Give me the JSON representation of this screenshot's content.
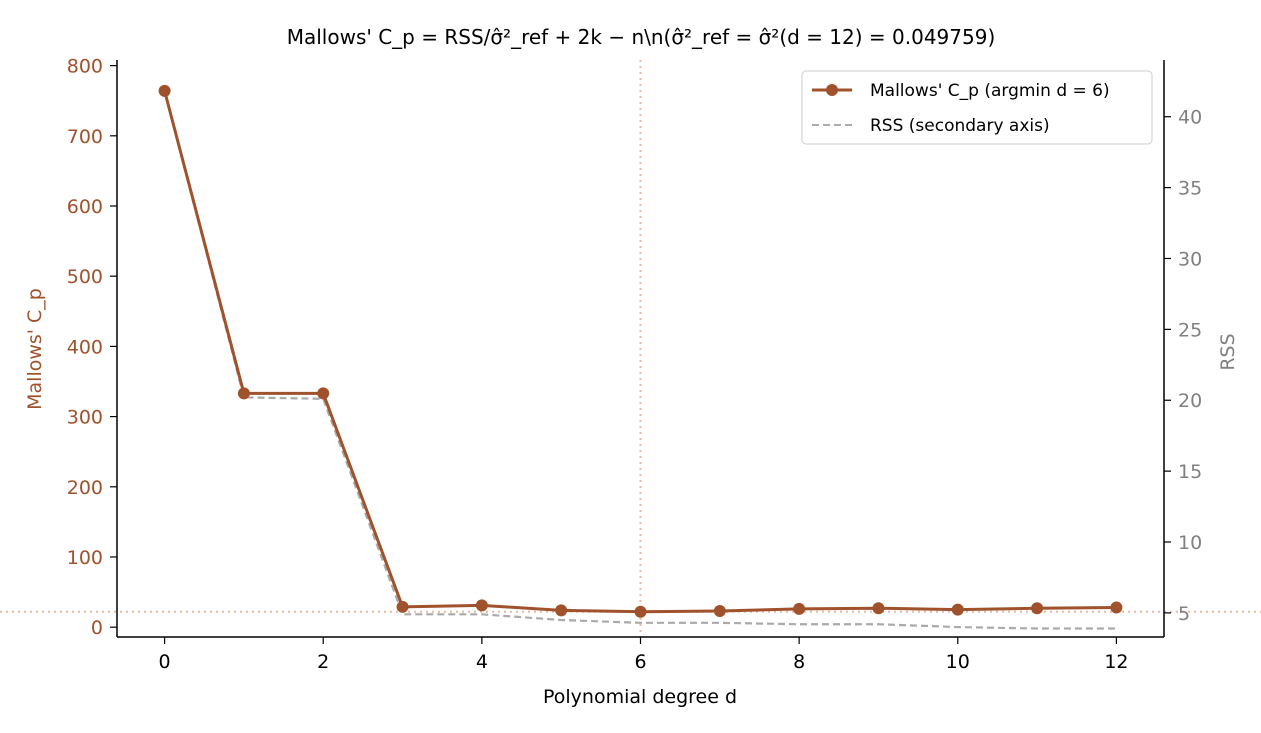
{
  "chart_data": {
    "type": "line",
    "title": "Mallows' C_p = RSS/σ̂²_ref + 2k − n\\n(σ̂²_ref = σ̂²(d = 12) = 0.049759)",
    "xlabel": "Polynomial degree d",
    "ylabel": "Mallows' C_p",
    "y2label": "RSS",
    "x": [
      0,
      1,
      2,
      3,
      4,
      5,
      6,
      7,
      8,
      9,
      10,
      11,
      12
    ],
    "xlim": [
      -0.6,
      12.6
    ],
    "ylim": [
      -14,
      808
    ],
    "y2lim": [
      3.3,
      44.0
    ],
    "xticks": [
      0,
      2,
      4,
      6,
      8,
      10,
      12
    ],
    "xtick_labels": [
      "0",
      "2",
      "4",
      "6",
      "8",
      "10",
      "12"
    ],
    "yticks": [
      0,
      100,
      200,
      300,
      400,
      500,
      600,
      700,
      800
    ],
    "ytick_labels": [
      "0",
      "100",
      "200",
      "300",
      "400",
      "500",
      "600",
      "700",
      "800"
    ],
    "y2ticks": [
      5,
      10,
      15,
      20,
      25,
      30,
      35,
      40
    ],
    "y2tick_labels": [
      "5",
      "10",
      "15",
      "20",
      "25",
      "30",
      "35",
      "40"
    ],
    "series": [
      {
        "name": "Mallows' C_p (argmin d = 6)",
        "axis": "left",
        "style": "solid-marker",
        "values": [
          764,
          333,
          333,
          29,
          31,
          24,
          22,
          23,
          26,
          27,
          25,
          27,
          28
        ]
      },
      {
        "name": "RSS (secondary axis)",
        "axis": "right",
        "style": "dashed",
        "values": [
          41.8,
          20.2,
          20.1,
          4.9,
          4.9,
          4.5,
          4.3,
          4.3,
          4.2,
          4.2,
          4.0,
          3.9,
          3.9
        ]
      }
    ],
    "vline_x": 6,
    "hline_y": 22,
    "grid": false,
    "legend_position": "top-right",
    "colors": {
      "cp": "#A0522D",
      "rss": "#AAAAAA",
      "ref_lines": "#E8B9A0",
      "right_axis_text": "#808080",
      "axis": "#000000"
    }
  }
}
